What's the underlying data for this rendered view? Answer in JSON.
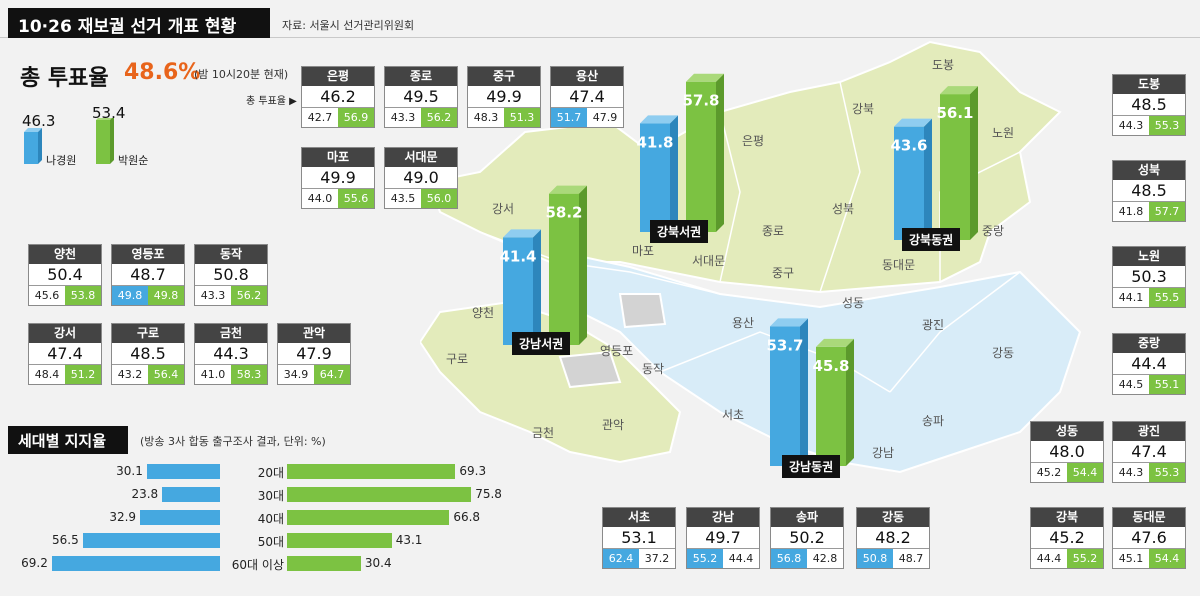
{
  "header": {
    "title": "10·26 재보궐 선거 개표 현황",
    "source": "자료: 서울시 선거관리위원회"
  },
  "turnout": {
    "label": "총 투표율",
    "value": "48.6%",
    "note": "(밤 10시20분 현재)",
    "row_label": "총 투표율 ▶"
  },
  "legend": {
    "na_value": "46.3",
    "na_name": "나경원",
    "park_value": "53.4",
    "park_name": "박원순"
  },
  "colors": {
    "na": "#45a8e0",
    "park": "#7cc242",
    "header": "#444444",
    "title_bg": "#111111",
    "accent": "#e8641b",
    "map_green": "#e3ebbb",
    "map_blue": "#d8ecf8"
  },
  "districts": [
    {
      "name": "은평",
      "total": "46.2",
      "na": "42.7",
      "park": "56.9",
      "win": "park"
    },
    {
      "name": "종로",
      "total": "49.5",
      "na": "43.3",
      "park": "56.2",
      "win": "park"
    },
    {
      "name": "중구",
      "total": "49.9",
      "na": "48.3",
      "park": "51.3",
      "win": "park"
    },
    {
      "name": "용산",
      "total": "47.4",
      "na": "51.7",
      "park": "47.9",
      "win": "na"
    },
    {
      "name": "마포",
      "total": "49.9",
      "na": "44.0",
      "park": "55.6",
      "win": "park"
    },
    {
      "name": "서대문",
      "total": "49.0",
      "na": "43.5",
      "park": "56.0",
      "win": "park"
    },
    {
      "name": "양천",
      "total": "50.4",
      "na": "45.6",
      "park": "53.8",
      "win": "park"
    },
    {
      "name": "영등포",
      "total": "48.7",
      "na": "49.8",
      "park": "49.8",
      "win": "both"
    },
    {
      "name": "동작",
      "total": "50.8",
      "na": "43.3",
      "park": "56.2",
      "win": "park"
    },
    {
      "name": "강서",
      "total": "47.4",
      "na": "48.4",
      "park": "51.2",
      "win": "park"
    },
    {
      "name": "구로",
      "total": "48.5",
      "na": "43.2",
      "park": "56.4",
      "win": "park"
    },
    {
      "name": "금천",
      "total": "44.3",
      "na": "41.0",
      "park": "58.3",
      "win": "park"
    },
    {
      "name": "관악",
      "total": "47.9",
      "na": "34.9",
      "park": "64.7",
      "win": "park"
    },
    {
      "name": "도봉",
      "total": "48.5",
      "na": "44.3",
      "park": "55.3",
      "win": "park"
    },
    {
      "name": "성북",
      "total": "48.5",
      "na": "41.8",
      "park": "57.7",
      "win": "park"
    },
    {
      "name": "노원",
      "total": "50.3",
      "na": "44.1",
      "park": "55.5",
      "win": "park"
    },
    {
      "name": "중랑",
      "total": "44.4",
      "na": "44.5",
      "park": "55.1",
      "win": "park"
    },
    {
      "name": "성동",
      "total": "48.0",
      "na": "45.2",
      "park": "54.4",
      "win": "park"
    },
    {
      "name": "광진",
      "total": "47.4",
      "na": "44.3",
      "park": "55.3",
      "win": "park"
    },
    {
      "name": "강북",
      "total": "45.2",
      "na": "44.4",
      "park": "55.2",
      "win": "park"
    },
    {
      "name": "동대문",
      "total": "47.6",
      "na": "45.1",
      "park": "54.4",
      "win": "park"
    },
    {
      "name": "서초",
      "total": "53.1",
      "na": "62.4",
      "park": "37.2",
      "win": "na"
    },
    {
      "name": "강남",
      "total": "49.7",
      "na": "55.2",
      "park": "44.4",
      "win": "na"
    },
    {
      "name": "송파",
      "total": "50.2",
      "na": "56.8",
      "park": "42.8",
      "win": "na"
    },
    {
      "name": "강동",
      "total": "48.2",
      "na": "50.8",
      "park": "48.7",
      "win": "na"
    }
  ],
  "regions": [
    {
      "name": "강북서권",
      "na": "41.8",
      "park": "57.8"
    },
    {
      "name": "강북동권",
      "na": "43.6",
      "park": "56.1"
    },
    {
      "name": "강남서권",
      "na": "41.4",
      "park": "58.2"
    },
    {
      "name": "강남동권",
      "na": "53.7",
      "park": "45.8"
    }
  ],
  "map_labels": [
    "도봉",
    "강북",
    "노원",
    "은평",
    "성북",
    "중랑",
    "종로",
    "동대문",
    "마포",
    "서대문",
    "중구",
    "강서",
    "성동",
    "양천",
    "용산",
    "광진",
    "구로",
    "영등포",
    "동작",
    "강동",
    "서초",
    "송파",
    "금천",
    "관악",
    "강남"
  ],
  "age": {
    "title": "세대별 지지율",
    "note": "(방송 3사 합동 출구조사 결과, 단위: %)",
    "chart_data": {
      "type": "bar",
      "categories": [
        "20대",
        "30대",
        "40대",
        "50대",
        "60대 이상"
      ],
      "series": [
        {
          "name": "나경원",
          "values": [
            30.1,
            23.8,
            32.9,
            56.5,
            69.2
          ]
        },
        {
          "name": "박원순",
          "values": [
            69.3,
            75.8,
            66.8,
            43.1,
            30.4
          ]
        }
      ],
      "labels_left": [
        "30.1",
        "23.8",
        "32.9",
        "56.5",
        "69.2"
      ],
      "labels_right": [
        "69.3",
        "75.8",
        "66.8",
        "43.1",
        "30.4"
      ]
    }
  }
}
